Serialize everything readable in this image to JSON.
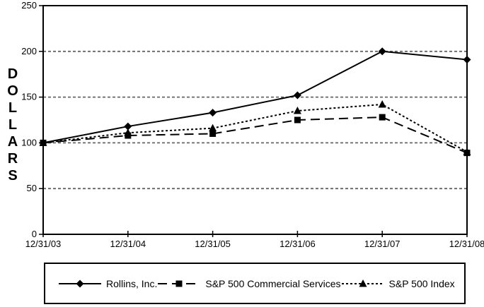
{
  "chart_data": {
    "type": "line",
    "title": "",
    "xlabel": "",
    "ylabel": "DOLLARS",
    "ylim": [
      0,
      250
    ],
    "yticks": [
      0,
      50,
      100,
      150,
      200,
      250
    ],
    "grid": "horizontal-dashed",
    "legend_position": "bottom-boxed",
    "categories": [
      "12/31/03",
      "12/31/04",
      "12/31/05",
      "12/31/06",
      "12/31/07",
      "12/31/08"
    ],
    "series": [
      {
        "name": "Rollins, Inc.",
        "marker": "diamond",
        "line_style": "solid",
        "values": [
          100,
          118,
          133,
          152,
          200,
          191
        ]
      },
      {
        "name": "S&P 500 Commercial Services",
        "marker": "square",
        "line_style": "long-dash",
        "values": [
          100,
          108,
          110,
          125,
          128,
          89
        ]
      },
      {
        "name": "S&P 500 Index",
        "marker": "triangle",
        "line_style": "dotted",
        "values": [
          100,
          111,
          116,
          135,
          142,
          90
        ]
      }
    ],
    "colors": {
      "line": "#000000",
      "grid": "#666666",
      "background": "#ffffff"
    }
  }
}
